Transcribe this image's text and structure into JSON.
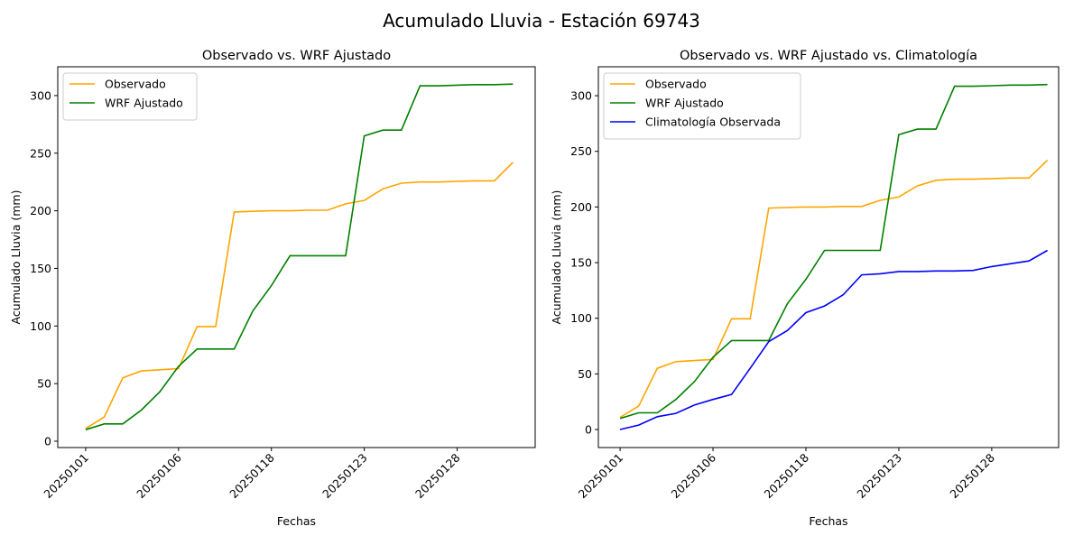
{
  "suptitle": "Acumulado Lluvia - Estación 69743",
  "chart_data": [
    {
      "type": "line",
      "title": "Observado vs. WRF Ajustado",
      "xlabel": "Fechas",
      "ylabel": "Acumulado Lluvia (mm)",
      "xticks": [
        {
          "index": 0,
          "label": "20250101"
        },
        {
          "index": 5,
          "label": "20250106"
        },
        {
          "index": 10,
          "label": "20250118"
        },
        {
          "index": 15,
          "label": "20250123"
        },
        {
          "index": 20,
          "label": "20250128"
        }
      ],
      "yticks": [
        0,
        50,
        100,
        150,
        200,
        250,
        300
      ],
      "xlim": [
        -1.5,
        24.2
      ],
      "ylim": [
        -5.5,
        325
      ],
      "legend": "top-left",
      "series": [
        {
          "name": "Observado",
          "color": "#ffa500",
          "values": [
            11,
            21,
            55,
            61,
            62,
            63,
            99.5,
            99.5,
            199,
            199.5,
            200,
            200,
            200.5,
            200.5,
            206,
            209,
            219,
            224,
            225,
            225,
            225.5,
            226,
            226,
            242
          ]
        },
        {
          "name": "WRF Ajustado",
          "color": "#008000",
          "values": [
            10,
            15,
            15,
            27,
            43,
            65,
            80,
            80,
            80,
            113,
            135,
            161,
            161,
            161,
            161,
            265,
            270,
            270,
            308.5,
            308.5,
            309,
            309.5,
            309.5,
            310
          ]
        }
      ]
    },
    {
      "type": "line",
      "title": "Observado vs. WRF Ajustado vs. Climatología",
      "xlabel": "Fechas",
      "ylabel": "Acumulado Lluvia (mm)",
      "xticks": [
        {
          "index": 0,
          "label": "20250101"
        },
        {
          "index": 5,
          "label": "20250106"
        },
        {
          "index": 10,
          "label": "20250118"
        },
        {
          "index": 15,
          "label": "20250123"
        },
        {
          "index": 20,
          "label": "20250128"
        }
      ],
      "yticks": [
        0,
        50,
        100,
        150,
        200,
        250,
        300
      ],
      "xlim": [
        -1.17,
        23.6
      ],
      "ylim": [
        -16.2,
        326
      ],
      "legend": "top-left",
      "series": [
        {
          "name": "Observado",
          "color": "#ffa500",
          "values": [
            11,
            21,
            55,
            61,
            62,
            63,
            99.5,
            99.5,
            199,
            199.5,
            200,
            200,
            200.5,
            200.5,
            206,
            209,
            219,
            224,
            225,
            225,
            225.5,
            226,
            226,
            242
          ]
        },
        {
          "name": "WRF Ajustado",
          "color": "#008000",
          "values": [
            10,
            15,
            15,
            27,
            43,
            65,
            80,
            80,
            80,
            113,
            135,
            161,
            161,
            161,
            161,
            265,
            270,
            270,
            308.5,
            308.5,
            309,
            309.5,
            309.5,
            310
          ]
        },
        {
          "name": "Climatología Observada",
          "color": "#0000ff",
          "values": [
            0,
            4,
            11.5,
            14.5,
            22,
            27,
            31.5,
            55,
            79,
            89,
            105,
            111,
            121,
            139,
            140,
            142,
            142,
            142.5,
            142.5,
            143,
            146.5,
            149,
            151.5,
            161
          ]
        }
      ]
    }
  ]
}
